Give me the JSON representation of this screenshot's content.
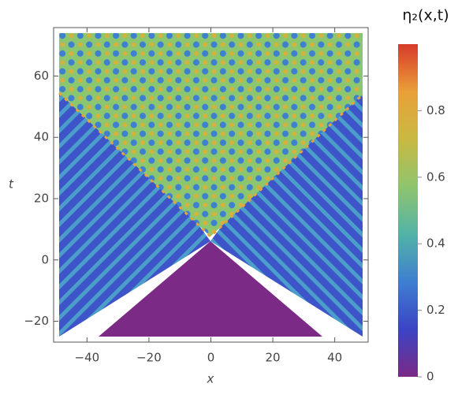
{
  "chart_data": {
    "type": "density",
    "xlabel": "x",
    "ylabel": "t",
    "xlim": [
      -49,
      49
    ],
    "ylim": [
      -25,
      74
    ],
    "xticks": [
      {
        "value": -40,
        "label": "−40"
      },
      {
        "value": -20,
        "label": "−20"
      },
      0,
      20,
      40
    ],
    "yticks": [
      {
        "value": -20,
        "label": "−20"
      },
      0,
      20,
      40,
      60
    ],
    "colorbar": {
      "title": "η₂(x,t)",
      "lim": [
        0,
        1
      ],
      "ticks": [
        0,
        0.2,
        0.4,
        0.6,
        0.8
      ],
      "colormap": [
        "#7b2a86",
        "#3b44c4",
        "#3f7fd0",
        "#52b3a7",
        "#8fc46e",
        "#c9b943",
        "#e9a03a",
        "#d8392b"
      ]
    }
  }
}
